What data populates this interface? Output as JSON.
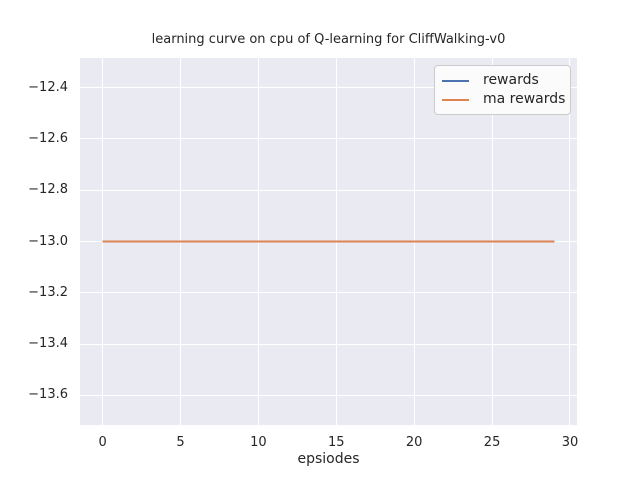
{
  "figure": {
    "background_color": "#ffffff",
    "axes_background_color": "#eaeaf2",
    "grid_color": "#ffffff",
    "text_color": "#262626",
    "legend_face_color": "#fbfbfc",
    "legend_edge_color": "#cccccc"
  },
  "chart_data": {
    "type": "line",
    "title": "learning curve on cpu of Q-learning for CliffWalking-v0",
    "xlabel": "epsiodes",
    "ylabel": "",
    "grid": true,
    "legend_position": "upper right",
    "xlim": [
      -1.45,
      30.45
    ],
    "ylim": [
      -13.715,
      -12.285
    ],
    "xticks": [
      0,
      5,
      10,
      15,
      20,
      25,
      30
    ],
    "xtick_labels": [
      "0",
      "5",
      "10",
      "15",
      "20",
      "25",
      "30"
    ],
    "yticks": [
      -12.4,
      -12.6,
      -12.8,
      -13.0,
      -13.2,
      -13.4,
      -13.6
    ],
    "ytick_labels": [
      "−12.4",
      "−12.6",
      "−12.8",
      "−13.0",
      "−13.2",
      "−13.4",
      "−13.6"
    ],
    "x": [
      0,
      1,
      2,
      3,
      4,
      5,
      6,
      7,
      8,
      9,
      10,
      11,
      12,
      13,
      14,
      15,
      16,
      17,
      18,
      19,
      20,
      21,
      22,
      23,
      24,
      25,
      26,
      27,
      28,
      29
    ],
    "series": [
      {
        "name": "rewards",
        "color": "#4c72b0",
        "values": [
          -13.0,
          -13.0,
          -13.0,
          -13.0,
          -13.0,
          -13.0,
          -13.0,
          -13.0,
          -13.0,
          -13.0,
          -13.0,
          -13.0,
          -13.0,
          -13.0,
          -13.0,
          -13.0,
          -13.0,
          -13.0,
          -13.0,
          -13.0,
          -13.0,
          -13.0,
          -13.0,
          -13.0,
          -13.0,
          -13.0,
          -13.0,
          -13.0,
          -13.0,
          -13.0
        ]
      },
      {
        "name": "ma rewards",
        "color": "#dd8452",
        "values": [
          -13.0,
          -13.0,
          -13.0,
          -13.0,
          -13.0,
          -13.0,
          -13.0,
          -13.0,
          -13.0,
          -13.0,
          -13.0,
          -13.0,
          -13.0,
          -13.0,
          -13.0,
          -13.0,
          -13.0,
          -13.0,
          -13.0,
          -13.0,
          -13.0,
          -13.0,
          -13.0,
          -13.0,
          -13.0,
          -13.0,
          -13.0,
          -13.0,
          -13.0,
          -13.0
        ]
      }
    ]
  },
  "legend": {
    "items": [
      {
        "label": "rewards",
        "color": "#4c72b0"
      },
      {
        "label": "ma rewards",
        "color": "#dd8452"
      }
    ]
  }
}
